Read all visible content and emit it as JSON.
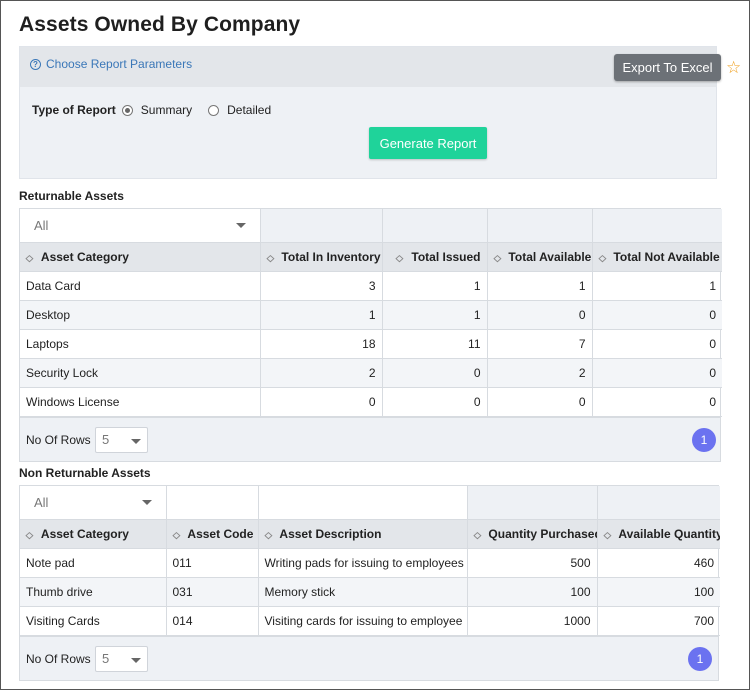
{
  "page": {
    "title": "Assets Owned By Company"
  },
  "params": {
    "choose_label": "Choose Report Parameters",
    "export_label": "Export To Excel",
    "type_label": "Type of Report",
    "options": [
      "Summary",
      "Detailed"
    ],
    "selected": "Summary",
    "generate_label": "Generate Report"
  },
  "returnable": {
    "title": "Returnable Assets",
    "filter_value": "All",
    "columns": [
      "Asset Category",
      "Total In Inventory",
      "Total Issued",
      "Total Available",
      "Total Not Available"
    ],
    "rows": [
      [
        "Data Card",
        "3",
        "1",
        "1",
        "1"
      ],
      [
        "Desktop",
        "1",
        "1",
        "0",
        "0"
      ],
      [
        "Laptops",
        "18",
        "11",
        "7",
        "0"
      ],
      [
        "Security Lock",
        "2",
        "0",
        "2",
        "0"
      ],
      [
        "Windows License",
        "0",
        "0",
        "0",
        "0"
      ]
    ],
    "rows_label": "No Of Rows :",
    "rows_value": "5",
    "page": "1"
  },
  "nonreturnable": {
    "title": "Non Returnable Assets",
    "filter_value": "All",
    "columns": [
      "Asset Category",
      "Asset Code",
      "Asset Description",
      "Quantity Purchased",
      "Available Quantity"
    ],
    "rows": [
      [
        "Note pad",
        "011",
        "Writing pads for issuing to employees",
        "500",
        "460"
      ],
      [
        "Thumb drive",
        "031",
        "Memory stick",
        "100",
        "100"
      ],
      [
        "Visiting Cards",
        "014",
        "Visiting cards for issuing to employee",
        "1000",
        "700"
      ]
    ],
    "rows_label": "No Of Rows :",
    "rows_value": "5",
    "page": "1"
  },
  "colors": {
    "accent_green": "#1fd39a",
    "page_blue": "#6b72f0",
    "link_blue": "#3a77b8",
    "star": "#f0a020"
  }
}
